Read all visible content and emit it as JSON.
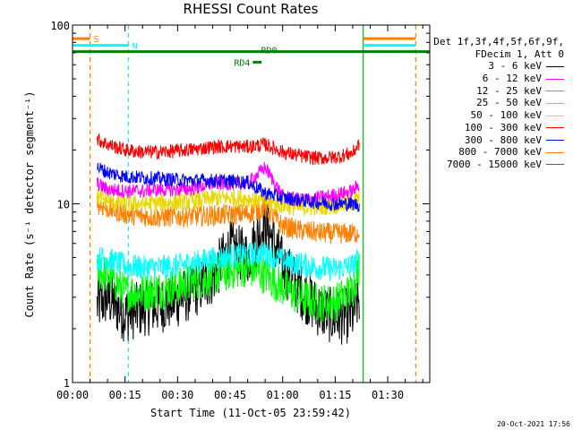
{
  "chart_data": {
    "type": "line",
    "title": "RHESSI Count Rates",
    "xlabel": "Start Time (11-Oct-05 23:59:42)",
    "ylabel": "Count Rate (s⁻¹ detector segment⁻¹)",
    "yscale": "log",
    "ylim": [
      1,
      100
    ],
    "xlim_min": [
      0,
      102
    ],
    "x_ticks": [
      "00:00",
      "00:15",
      "00:30",
      "00:45",
      "01:00",
      "01:15",
      "01:30"
    ],
    "y_ticks": [
      "1",
      "10",
      "100"
    ],
    "data_x_range_min": [
      7,
      82
    ],
    "legend_header": [
      "Det 1f,3f,4f,5f,6f,9f,",
      "FDecim 1, Att 0"
    ],
    "series": [
      {
        "name": "3 - 6 keV",
        "color": "#000000",
        "x": [
          7,
          10,
          15,
          20,
          25,
          30,
          35,
          40,
          45,
          50,
          55,
          60,
          65,
          70,
          75,
          80,
          82
        ],
        "y": [
          2.7,
          3.0,
          2.4,
          2.6,
          2.7,
          2.9,
          3.3,
          3.9,
          5.6,
          5.0,
          8.0,
          4.5,
          3.3,
          2.6,
          2.3,
          2.4,
          3.0
        ]
      },
      {
        "name": "6 - 12 keV",
        "color": "#ff00ff",
        "x": [
          7,
          10,
          15,
          20,
          25,
          30,
          35,
          40,
          45,
          50,
          55,
          60,
          65,
          70,
          75,
          80,
          82
        ],
        "y": [
          13.0,
          12.0,
          11.8,
          11.8,
          12.0,
          12.0,
          12.2,
          13.0,
          13.0,
          13.0,
          16.0,
          11.0,
          10.5,
          10.8,
          11.2,
          11.8,
          13.0
        ]
      },
      {
        "name": "12 - 25 keV",
        "color": "#00ff00",
        "x": [
          7,
          10,
          15,
          20,
          25,
          30,
          35,
          40,
          45,
          50,
          55,
          60,
          65,
          70,
          75,
          80,
          82
        ],
        "y": [
          4.2,
          4.0,
          3.2,
          3.2,
          3.3,
          3.4,
          3.7,
          3.9,
          4.2,
          4.4,
          4.0,
          3.4,
          3.0,
          2.8,
          2.8,
          3.3,
          4.6
        ]
      },
      {
        "name": "25 - 50 keV",
        "color": "#00ffff",
        "x": [
          7,
          10,
          15,
          20,
          25,
          30,
          35,
          40,
          45,
          50,
          55,
          60,
          65,
          70,
          75,
          80,
          82
        ],
        "y": [
          5.0,
          4.9,
          4.5,
          4.4,
          4.4,
          4.5,
          4.7,
          4.9,
          5.1,
          5.2,
          5.3,
          4.8,
          4.6,
          4.4,
          4.3,
          4.5,
          5.0
        ]
      },
      {
        "name": "50 - 100 keV",
        "color": "#e8d800",
        "x": [
          7,
          10,
          15,
          20,
          25,
          30,
          35,
          40,
          45,
          50,
          55,
          60,
          65,
          70,
          75,
          80,
          82
        ],
        "y": [
          11.0,
          10.4,
          10.0,
          10.0,
          10.1,
          10.2,
          10.4,
          10.7,
          10.8,
          10.7,
          10.3,
          9.8,
          9.5,
          9.6,
          9.8,
          10.2,
          10.8
        ]
      },
      {
        "name": "100 - 300 keV",
        "color": "#ff0000",
        "x": [
          7,
          10,
          15,
          20,
          25,
          30,
          35,
          40,
          45,
          50,
          55,
          60,
          65,
          70,
          75,
          80,
          82
        ],
        "y": [
          23.0,
          21.5,
          20.0,
          19.5,
          19.5,
          19.8,
          20.2,
          20.8,
          21.0,
          20.8,
          21.5,
          19.5,
          18.5,
          18.0,
          18.2,
          19.2,
          22.0
        ]
      },
      {
        "name": "300 - 800 keV",
        "color": "#0000ff",
        "x": [
          7,
          10,
          15,
          20,
          25,
          30,
          35,
          40,
          45,
          50,
          55,
          60,
          65,
          70,
          75,
          80,
          82
        ],
        "y": [
          16.0,
          15.0,
          14.2,
          14.0,
          13.8,
          13.6,
          13.5,
          13.5,
          13.4,
          13.2,
          11.5,
          10.8,
          10.5,
          10.2,
          10.0,
          10.0,
          9.8
        ]
      },
      {
        "name": "800 - 7000 keV",
        "color": "#ff8000",
        "x": [
          7,
          10,
          15,
          20,
          25,
          30,
          35,
          40,
          45,
          50,
          55,
          60,
          65,
          70,
          75,
          80,
          82
        ],
        "y": [
          10.0,
          9.4,
          8.8,
          8.5,
          8.4,
          8.5,
          8.5,
          8.6,
          8.7,
          8.8,
          9.5,
          7.5,
          7.1,
          6.9,
          6.8,
          6.8,
          7.0
        ]
      },
      {
        "name": "7000 - 15000 keV",
        "color": "#806020",
        "x": [],
        "y": []
      }
    ],
    "flag_bars": [
      {
        "label": "S",
        "color": "#ff8000",
        "y": 84,
        "x_range": [
          0,
          5
        ],
        "label_side": "right"
      },
      {
        "label": "N",
        "color": "#00ffff",
        "y": 77,
        "x_range": [
          0,
          16
        ],
        "label_side": "right"
      },
      {
        "label": "RD0",
        "color": "#008000",
        "y": 71,
        "x_range": [
          0,
          102
        ],
        "label_side": "center"
      },
      {
        "label": "RD4",
        "color": "#008000",
        "y": 62,
        "x_range": [
          51.5,
          54
        ],
        "label_side": "left"
      },
      {
        "label": "",
        "color": "#ff8000",
        "y": 84,
        "x_range": [
          83,
          98
        ],
        "label_side": "none"
      },
      {
        "label": "",
        "color": "#00ffff",
        "y": 77,
        "x_range": [
          83,
          98
        ],
        "label_side": "none"
      }
    ],
    "vertical_lines": [
      {
        "x": 5,
        "color": "#ff8000",
        "style": "dashed"
      },
      {
        "x": 16,
        "color": "#00ffff",
        "style": "dashed"
      },
      {
        "x": 83,
        "color": "#00c000",
        "style": "solid"
      },
      {
        "x": 98,
        "color": "#ff8000",
        "style": "dashed"
      }
    ]
  },
  "timestamp": "20-Oct-2021 17:56"
}
